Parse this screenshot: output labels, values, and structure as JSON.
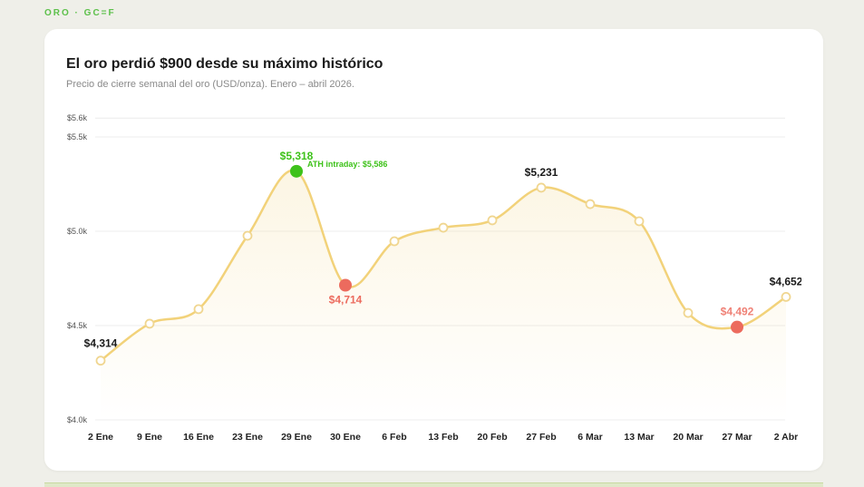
{
  "header": {
    "kicker": "ORO · GC=F"
  },
  "chart_data": {
    "type": "line",
    "title": "El oro perdió $900 desde su máximo histórico",
    "subtitle": "Precio de cierre semanal del oro (USD/onza). Enero – abril 2026.",
    "xlabel": "",
    "ylabel": "",
    "ylim": [
      4000,
      5600
    ],
    "yticks": [
      {
        "value": 4000,
        "label": "$4.0k"
      },
      {
        "value": 4500,
        "label": "$4.5k"
      },
      {
        "value": 5000,
        "label": "$5.0k"
      },
      {
        "value": 5500,
        "label": "$5.5k"
      },
      {
        "value": 5600,
        "label": "$5.6k"
      }
    ],
    "grid": true,
    "categories": [
      "2 Ene",
      "9 Ene",
      "16 Ene",
      "23 Ene",
      "29 Ene",
      "30 Ene",
      "6 Feb",
      "13 Feb",
      "20 Feb",
      "27 Feb",
      "6 Mar",
      "13 Mar",
      "20 Mar",
      "27 Mar",
      "2 Abr"
    ],
    "values": [
      4314,
      4510,
      4587,
      4976,
      5318,
      4714,
      4947,
      5019,
      5058,
      5231,
      5144,
      5053,
      4567,
      4492,
      4652
    ],
    "line_color": "#f2d27a",
    "highlights": [
      {
        "index": 0,
        "label": "$4,314",
        "color": "#1a1a1a",
        "style": "label"
      },
      {
        "index": 4,
        "label": "$5,318",
        "color": "#3ec21a",
        "style": "max"
      },
      {
        "index": 5,
        "label": "$4,714",
        "color": "#ec6b5e",
        "style": "min"
      },
      {
        "index": 9,
        "label": "$5,231",
        "color": "#1a1a1a",
        "style": "label"
      },
      {
        "index": 13,
        "label": "$4,492",
        "color": "#ec6b5e",
        "style": "min"
      },
      {
        "index": 14,
        "label": "$4,652",
        "color": "#1a1a1a",
        "style": "label"
      }
    ],
    "annotations": [
      {
        "index": 4,
        "text": "ATH intraday: $5,586",
        "color": "#3ec21a"
      }
    ]
  }
}
